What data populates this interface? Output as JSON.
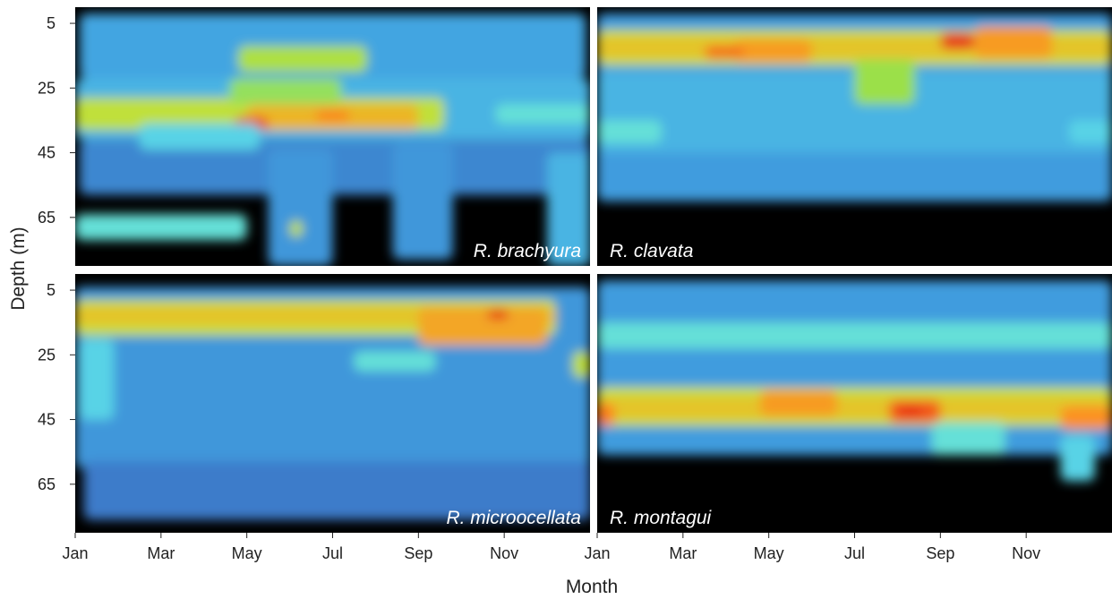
{
  "chart_data": {
    "type": "heatmap",
    "xlabel": "Month",
    "ylabel": "Depth (m)",
    "x_ticks": [
      "Jan",
      "Mar",
      "May",
      "Jul",
      "Sep",
      "Nov"
    ],
    "y_ticks": [
      5,
      25,
      45,
      65
    ],
    "x_range": [
      0,
      12
    ],
    "y_range": [
      0,
      80
    ],
    "y_inverted": true,
    "background_color": "#000000",
    "colormap": [
      "#3a45a8",
      "#3fa0e0",
      "#5fe0e8",
      "#9be04a",
      "#d8e030",
      "#ff8a20",
      "#e01818"
    ],
    "panels": [
      {
        "species": "R. brachyura",
        "label_position": "bottom-right",
        "bands": [
          {
            "x": [
              0,
              12
            ],
            "y0": 22,
            "y1": 41,
            "value": 0.22
          },
          {
            "x": [
              0.1,
              11.9
            ],
            "y0": 2,
            "y1": 22,
            "value": 0.18
          },
          {
            "x": [
              0.1,
              12
            ],
            "y0": 41,
            "y1": 58,
            "value": 0.12
          },
          {
            "x": [
              0,
              4.0
            ],
            "y0": 64,
            "y1": 72,
            "value": 0.35
          },
          {
            "x": [
              0,
              8.6
            ],
            "y0": 28,
            "y1": 38,
            "value": 0.6
          },
          {
            "x": [
              3.8,
              6.8
            ],
            "y0": 12,
            "y1": 20,
            "value": 0.55
          },
          {
            "x": [
              4.0,
              8.0
            ],
            "y0": 30,
            "y1": 38,
            "value": 0.75
          },
          {
            "x": [
              3.7,
              4.5
            ],
            "y0": 34,
            "y1": 38,
            "value": 0.95
          },
          {
            "x": [
              5.6,
              6.4
            ],
            "y0": 32,
            "y1": 35,
            "value": 0.85
          },
          {
            "x": [
              3.6,
              6.2
            ],
            "y0": 22,
            "y1": 30,
            "value": 0.48
          },
          {
            "x": [
              9.8,
              12
            ],
            "y0": 30,
            "y1": 36,
            "value": 0.35
          },
          {
            "x": [
              1.5,
              4.3
            ],
            "y0": 36,
            "y1": 44,
            "value": 0.3
          },
          {
            "x": [
              4.5,
              6.0
            ],
            "y0": 44,
            "y1": 80,
            "value": 0.15
          },
          {
            "x": [
              7.4,
              8.8
            ],
            "y0": 42,
            "y1": 78,
            "value": 0.15
          },
          {
            "x": [
              11.0,
              12
            ],
            "y0": 45,
            "y1": 80,
            "value": 0.22
          },
          {
            "x": [
              5.0,
              5.3
            ],
            "y0": 66,
            "y1": 71,
            "value": 0.6
          }
        ]
      },
      {
        "species": "R. clavata",
        "label_position": "bottom-left",
        "bands": [
          {
            "x": [
              0,
              12
            ],
            "y0": 2,
            "y1": 60,
            "value": 0.16
          },
          {
            "x": [
              0,
              12
            ],
            "y0": 20,
            "y1": 45,
            "value": 0.22
          },
          {
            "x": [
              0,
              12
            ],
            "y0": 7,
            "y1": 18,
            "value": 0.62
          },
          {
            "x": [
              0,
              12
            ],
            "y0": 9,
            "y1": 16,
            "value": 0.72
          },
          {
            "x": [
              3.2,
              5.0
            ],
            "y0": 10,
            "y1": 17,
            "value": 0.8
          },
          {
            "x": [
              8.8,
              10.6
            ],
            "y0": 6,
            "y1": 16,
            "value": 0.8
          },
          {
            "x": [
              2.5,
              3.4
            ],
            "y0": 12,
            "y1": 16,
            "value": 0.88
          },
          {
            "x": [
              8.0,
              8.8
            ],
            "y0": 8,
            "y1": 13,
            "value": 0.96
          },
          {
            "x": [
              6.0,
              7.4
            ],
            "y0": 16,
            "y1": 30,
            "value": 0.5
          },
          {
            "x": [
              0,
              1.5
            ],
            "y0": 35,
            "y1": 42,
            "value": 0.35
          },
          {
            "x": [
              11.0,
              12
            ],
            "y0": 35,
            "y1": 42,
            "value": 0.3
          }
        ]
      },
      {
        "species": "R. microocellata",
        "label_position": "bottom-right",
        "bands": [
          {
            "x": [
              0,
              12
            ],
            "y0": 4,
            "y1": 60,
            "value": 0.15
          },
          {
            "x": [
              0.2,
              12
            ],
            "y0": 58,
            "y1": 76,
            "value": 0.1
          },
          {
            "x": [
              0,
              11.2
            ],
            "y0": 8,
            "y1": 19,
            "value": 0.62
          },
          {
            "x": [
              0,
              11.2
            ],
            "y0": 10,
            "y1": 16,
            "value": 0.72
          },
          {
            "x": [
              8.0,
              11.0
            ],
            "y0": 10,
            "y1": 22,
            "value": 0.78
          },
          {
            "x": [
              9.6,
              10.1
            ],
            "y0": 11,
            "y1": 14,
            "value": 0.97
          },
          {
            "x": [
              11.6,
              12
            ],
            "y0": 24,
            "y1": 32,
            "value": 0.6
          },
          {
            "x": [
              0.1,
              0.9
            ],
            "y0": 20,
            "y1": 45,
            "value": 0.3
          },
          {
            "x": [
              6.5,
              8.4
            ],
            "y0": 24,
            "y1": 30,
            "value": 0.35
          }
        ]
      },
      {
        "species": "R. montagui",
        "label_position": "bottom-left",
        "bands": [
          {
            "x": [
              0,
              12
            ],
            "y0": 2,
            "y1": 56,
            "value": 0.16
          },
          {
            "x": [
              0,
              12
            ],
            "y0": 15,
            "y1": 23,
            "value": 0.35
          },
          {
            "x": [
              0,
              12
            ],
            "y0": 35,
            "y1": 47,
            "value": 0.62
          },
          {
            "x": [
              0,
              12
            ],
            "y0": 38,
            "y1": 45,
            "value": 0.72
          },
          {
            "x": [
              3.8,
              5.6
            ],
            "y0": 36,
            "y1": 44,
            "value": 0.8
          },
          {
            "x": [
              6.8,
              8.0
            ],
            "y0": 39,
            "y1": 46,
            "value": 0.9
          },
          {
            "x": [
              7.0,
              7.6
            ],
            "y0": 41,
            "y1": 44,
            "value": 0.97
          },
          {
            "x": [
              10.8,
              12
            ],
            "y0": 41,
            "y1": 48,
            "value": 0.82
          },
          {
            "x": [
              0,
              0.4
            ],
            "y0": 40,
            "y1": 47,
            "value": 0.85
          },
          {
            "x": [
              7.8,
              9.5
            ],
            "y0": 46,
            "y1": 56,
            "value": 0.35
          },
          {
            "x": [
              10.8,
              11.6
            ],
            "y0": 50,
            "y1": 64,
            "value": 0.3
          }
        ]
      }
    ]
  }
}
